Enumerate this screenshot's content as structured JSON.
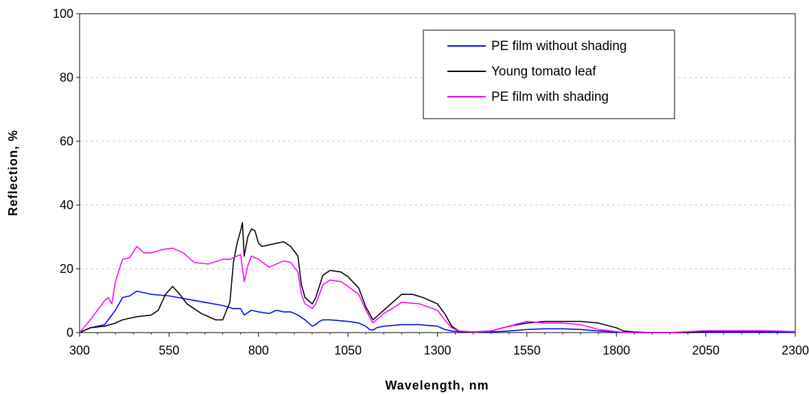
{
  "chart_data": {
    "type": "line",
    "title": "",
    "xlabel": "Wavelength, nm",
    "ylabel": "Reflection, %",
    "xlim": [
      300,
      2300
    ],
    "ylim": [
      0,
      100
    ],
    "x_ticks": [
      300,
      550,
      800,
      1050,
      1300,
      1550,
      1800,
      2050,
      2300
    ],
    "x_tick_labels": [
      "300",
      "550",
      "800",
      "1050",
      "1300",
      "1550",
      "1800",
      "2050",
      "2300"
    ],
    "y_ticks": [
      0,
      20,
      40,
      60,
      80,
      100
    ],
    "y_tick_labels": [
      "0",
      "20",
      "40",
      "60",
      "80",
      "100"
    ],
    "grid": "horizontal dashed",
    "legend_position": "top-right",
    "series": [
      {
        "name": "PE film without shading",
        "color": "#0000ff",
        "x": [
          300,
          330,
          370,
          400,
          420,
          440,
          460,
          480,
          500,
          550,
          600,
          650,
          700,
          730,
          750,
          760,
          780,
          800,
          830,
          850,
          870,
          890,
          910,
          930,
          950,
          960,
          970,
          980,
          1000,
          1050,
          1080,
          1100,
          1110,
          1120,
          1130,
          1150,
          1200,
          1250,
          1300,
          1320,
          1340,
          1360,
          1400,
          1450,
          1500,
          1550,
          1600,
          1650,
          1700,
          1750,
          1800,
          1820,
          1850,
          1900,
          1950,
          2000,
          2050,
          2100,
          2150,
          2200,
          2250,
          2300
        ],
        "y": [
          0,
          1.5,
          2.5,
          7,
          11,
          11.5,
          13,
          12.5,
          12,
          11.5,
          10.5,
          9.5,
          8.5,
          7.5,
          7.5,
          5.5,
          7,
          6.5,
          6,
          7,
          6.5,
          6.5,
          5.5,
          4,
          2,
          2.5,
          3.5,
          4,
          4,
          3.5,
          3,
          2,
          1,
          0.8,
          1.5,
          2,
          2.5,
          2.5,
          2,
          1,
          0.5,
          0.3,
          0.2,
          0.2,
          0.5,
          1,
          1.2,
          1.2,
          1,
          0.5,
          0.2,
          0.1,
          0,
          0,
          0,
          0,
          0.1,
          0.1,
          0.1,
          0.1,
          0.1,
          0.1
        ]
      },
      {
        "name": "Young tomato leaf",
        "color": "#000000",
        "x": [
          300,
          330,
          370,
          400,
          420,
          440,
          460,
          500,
          520,
          540,
          560,
          580,
          600,
          640,
          680,
          700,
          720,
          730,
          740,
          750,
          755,
          760,
          770,
          780,
          790,
          800,
          810,
          830,
          850,
          870,
          890,
          910,
          920,
          930,
          950,
          960,
          980,
          1000,
          1030,
          1050,
          1080,
          1100,
          1120,
          1130,
          1150,
          1180,
          1200,
          1230,
          1260,
          1300,
          1320,
          1340,
          1360,
          1400,
          1450,
          1500,
          1550,
          1600,
          1650,
          1700,
          1750,
          1800,
          1820,
          1850,
          1900,
          1950,
          2000,
          2050,
          2100,
          2150,
          2200,
          2250,
          2300
        ],
        "y": [
          0,
          1.5,
          2,
          3,
          4,
          4.5,
          5,
          5.5,
          7,
          12,
          14.5,
          12,
          9,
          6,
          4,
          4,
          9.5,
          22,
          28,
          32,
          34.5,
          24,
          30,
          32.5,
          32,
          28,
          27,
          27.5,
          28,
          28.5,
          27,
          24,
          15,
          11,
          9,
          11,
          18,
          19.5,
          19,
          17.5,
          14,
          8,
          4,
          5,
          7,
          10,
          12,
          12,
          11,
          9,
          6,
          2,
          0.5,
          0.2,
          0.5,
          2,
          3,
          3.5,
          3.5,
          3.5,
          3,
          1.5,
          0.5,
          0.2,
          0,
          0,
          0,
          0.3,
          0.4,
          0.4,
          0.4,
          0.4,
          0.3
        ]
      },
      {
        "name": "PE film with shading",
        "color": "#ff00ff",
        "x": [
          300,
          330,
          350,
          370,
          380,
          390,
          400,
          420,
          440,
          460,
          480,
          500,
          530,
          560,
          590,
          620,
          660,
          700,
          720,
          740,
          750,
          760,
          770,
          780,
          800,
          830,
          850,
          870,
          890,
          910,
          920,
          930,
          950,
          960,
          980,
          1000,
          1030,
          1050,
          1080,
          1100,
          1120,
          1130,
          1150,
          1180,
          1200,
          1250,
          1300,
          1320,
          1340,
          1360,
          1400,
          1450,
          1500,
          1550,
          1600,
          1650,
          1700,
          1750,
          1800,
          1820,
          1850,
          1900,
          1950,
          2000,
          2050,
          2100,
          2150,
          2200,
          2250,
          2300
        ],
        "y": [
          0,
          4,
          7,
          10,
          11,
          9,
          16,
          23,
          23.5,
          27,
          25,
          25,
          26,
          26.5,
          25,
          22,
          21.5,
          23,
          23,
          24,
          24.5,
          16,
          21,
          24,
          23,
          20.5,
          21.5,
          22.5,
          22,
          19,
          12,
          9,
          7.5,
          9,
          15,
          16.5,
          16,
          14.5,
          12,
          7,
          3,
          4,
          6,
          8,
          9.5,
          9,
          7,
          4,
          1.5,
          0.5,
          0.2,
          0.5,
          2,
          3.5,
          3,
          3,
          2.5,
          1,
          0.3,
          0.1,
          0,
          0,
          0,
          0.3,
          0.6,
          0.6,
          0.6,
          0.6,
          0.5,
          0.3
        ]
      }
    ]
  }
}
